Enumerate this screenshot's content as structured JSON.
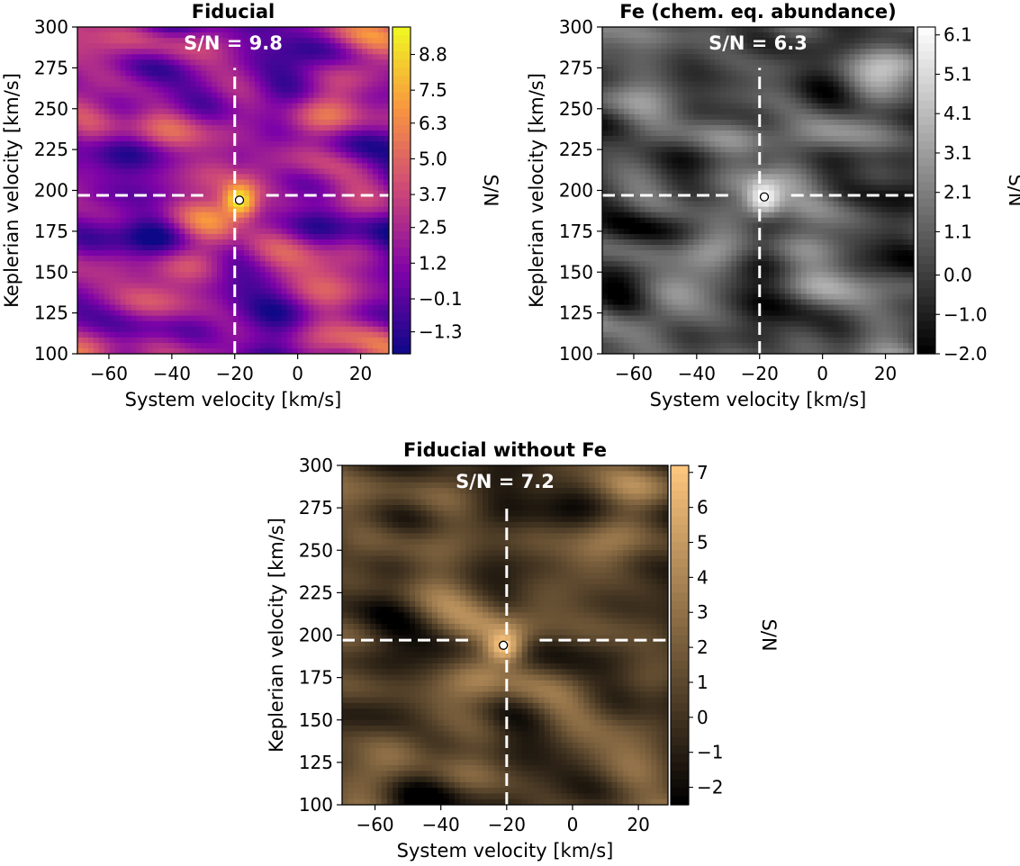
{
  "chart_data": [
    {
      "type": "heatmap",
      "title": "Fiducial",
      "xlabel": "System velocity [km/s]",
      "ylabel": "Keplerian velocity [km/s]",
      "xlim": [
        -70,
        29
      ],
      "ylim": [
        100,
        300
      ],
      "xticks": [
        -60,
        -40,
        -20,
        0,
        20
      ],
      "yticks": [
        100,
        125,
        150,
        175,
        200,
        225,
        250,
        275,
        300
      ],
      "annotation": "S/N = 9.8",
      "peak": {
        "x": -18.5,
        "y": 194
      },
      "crosshair": {
        "x": -20,
        "y": 197
      },
      "colorbar": {
        "label": "S/N",
        "colormap": "plasma",
        "range": [
          -2.1,
          9.8
        ],
        "ticks": [
          "8.8",
          "7.5",
          "6.3",
          "5.0",
          "3.7",
          "2.5",
          "1.2",
          "−0.1",
          "−1.3"
        ]
      }
    },
    {
      "type": "heatmap",
      "title": "Fe (chem. eq. abundance)",
      "xlabel": "System velocity [km/s]",
      "ylabel": "Keplerian velocity [km/s]",
      "xlim": [
        -70,
        29
      ],
      "ylim": [
        100,
        300
      ],
      "xticks": [
        -60,
        -40,
        -20,
        0,
        20
      ],
      "yticks": [
        100,
        125,
        150,
        175,
        200,
        225,
        250,
        275,
        300
      ],
      "annotation": "S/N = 6.3",
      "peak": {
        "x": -18.5,
        "y": 196
      },
      "crosshair": {
        "x": -20,
        "y": 197
      },
      "colorbar": {
        "label": "S/N",
        "colormap": "gray",
        "range": [
          -2.0,
          6.3
        ],
        "ticks": [
          "6.1",
          "5.1",
          "4.1",
          "3.1",
          "2.1",
          "1.1",
          "0.0",
          "−1.0",
          "−2.0"
        ]
      }
    },
    {
      "type": "heatmap",
      "title": "Fiducial without Fe",
      "xlabel": "System velocity [km/s]",
      "ylabel": "Keplerian velocity [km/s]",
      "xlim": [
        -70,
        29
      ],
      "ylim": [
        100,
        300
      ],
      "xticks": [
        -60,
        -40,
        -20,
        0,
        20
      ],
      "yticks": [
        100,
        125,
        150,
        175,
        200,
        225,
        250,
        275,
        300
      ],
      "annotation": "S/N = 7.2",
      "peak": {
        "x": -21,
        "y": 194
      },
      "crosshair": {
        "x": -20,
        "y": 197
      },
      "colorbar": {
        "label": "S/N",
        "colormap": "copper",
        "range": [
          -2.5,
          7.2
        ],
        "ticks": [
          "7",
          "6",
          "5",
          "4",
          "3",
          "2",
          "1",
          "0",
          "−1",
          "−2"
        ]
      }
    }
  ]
}
